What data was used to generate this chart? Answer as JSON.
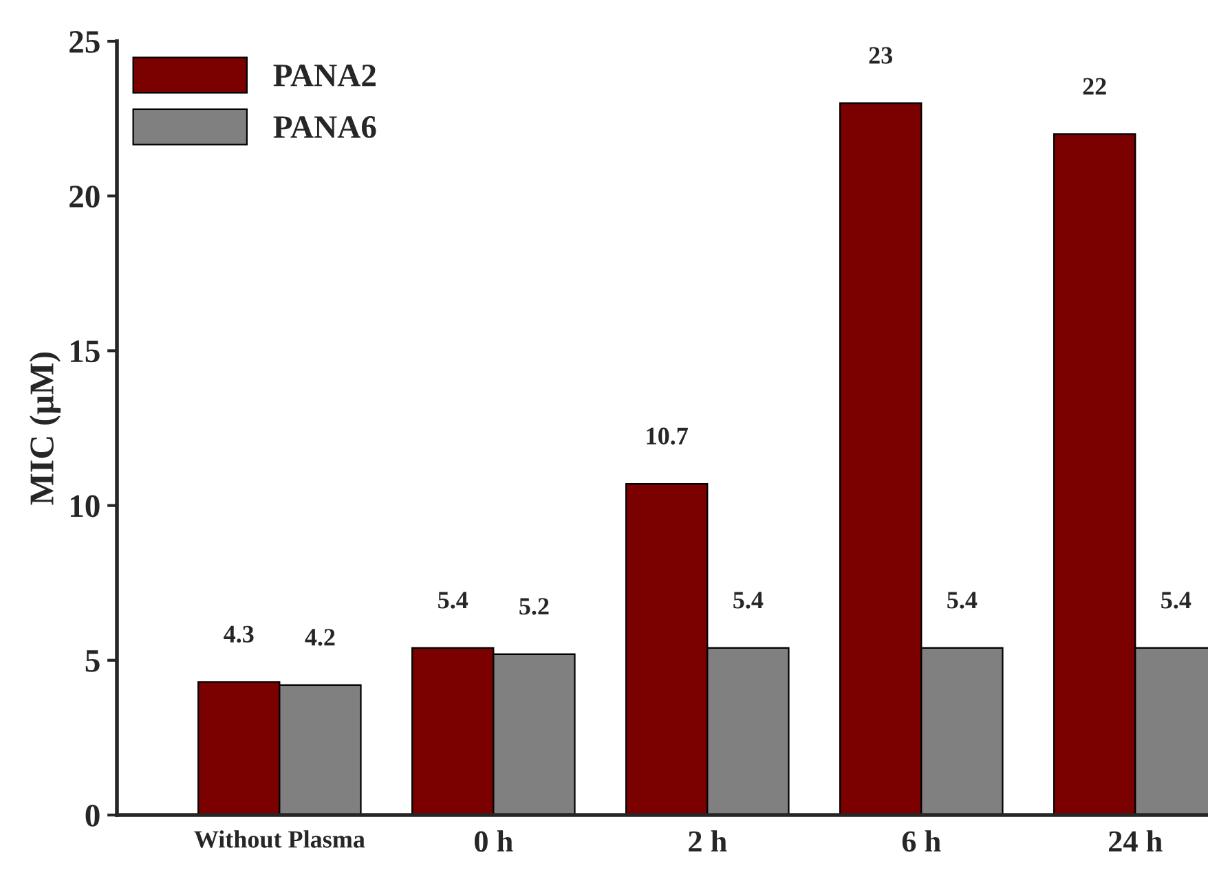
{
  "chart_data": {
    "type": "bar",
    "ylabel": "MIC (µM)",
    "categories": [
      "Without Plasma",
      "0 h",
      "2 h",
      "6 h",
      "24 h"
    ],
    "series": [
      {
        "name": "PANA2",
        "color": "#7b0000",
        "values": [
          4.3,
          5.4,
          10.7,
          23,
          22
        ]
      },
      {
        "name": "PANA6",
        "color": "#808080",
        "values": [
          4.2,
          5.2,
          5.4,
          5.4,
          5.4
        ]
      }
    ],
    "ylim": [
      0,
      25
    ],
    "yticks": [
      0,
      5,
      10,
      15,
      20,
      25
    ],
    "grid": false,
    "legend": "top left",
    "data_labels": true
  }
}
